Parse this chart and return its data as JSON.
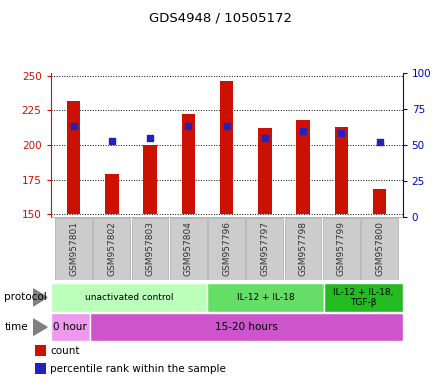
{
  "title": "GDS4948 / 10505172",
  "samples": [
    "GSM957801",
    "GSM957802",
    "GSM957803",
    "GSM957804",
    "GSM957796",
    "GSM957797",
    "GSM957798",
    "GSM957799",
    "GSM957800"
  ],
  "bar_values": [
    232,
    179,
    200,
    222,
    246,
    212,
    218,
    213,
    168
  ],
  "percentile_values": [
    63,
    53,
    55,
    63,
    63,
    55,
    60,
    58,
    52
  ],
  "bar_bottom": 150,
  "ylim_left": [
    148,
    252
  ],
  "ylim_right": [
    0,
    100
  ],
  "yticks_left": [
    150,
    175,
    200,
    225,
    250
  ],
  "yticks_right": [
    0,
    25,
    50,
    75,
    100
  ],
  "bar_color": "#cc1100",
  "dot_color": "#2222bb",
  "protocol_groups": [
    {
      "label": "unactivated control",
      "start": 0,
      "end": 4,
      "color": "#bbffbb"
    },
    {
      "label": "IL-12 + IL-18",
      "start": 4,
      "end": 7,
      "color": "#66dd66"
    },
    {
      "label": "IL-12 + IL-18,\nTGF-β",
      "start": 7,
      "end": 9,
      "color": "#22bb22"
    }
  ],
  "time_groups": [
    {
      "label": "0 hour",
      "start": 0,
      "end": 1,
      "color": "#ee99ee"
    },
    {
      "label": "15-20 hours",
      "start": 1,
      "end": 9,
      "color": "#cc55cc"
    }
  ],
  "left_axis_color": "#cc1100",
  "right_axis_color": "#0000cc",
  "legend_items": [
    {
      "label": "count",
      "color": "#cc1100"
    },
    {
      "label": "percentile rank within the sample",
      "color": "#2222bb"
    }
  ],
  "sample_box_color": "#cccccc",
  "sample_box_edge": "#aaaaaa",
  "fig_width": 4.4,
  "fig_height": 3.84,
  "dpi": 100
}
